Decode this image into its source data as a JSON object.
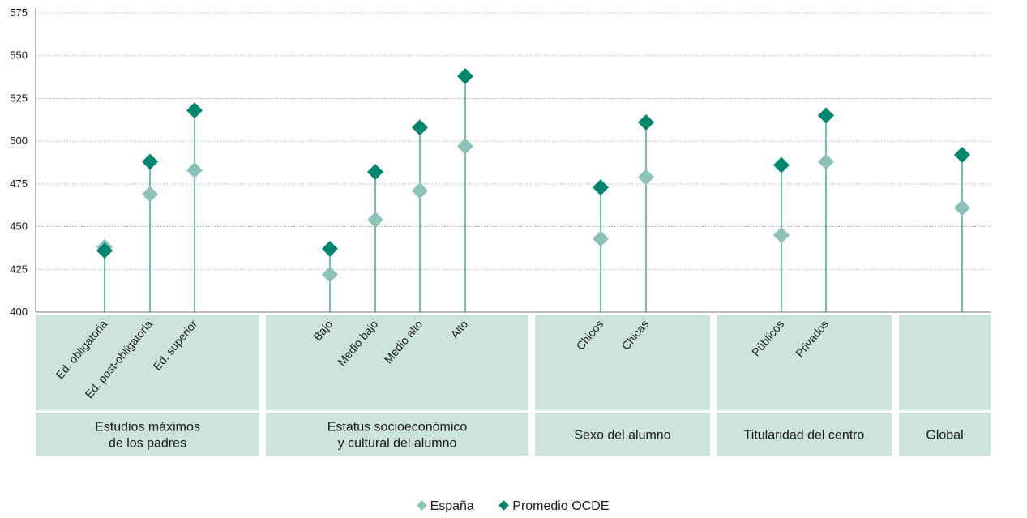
{
  "chart_data": {
    "type": "dot-range",
    "ylim": [
      400,
      575
    ],
    "yticks": [
      400,
      425,
      450,
      475,
      500,
      525,
      550,
      575
    ],
    "grid": true,
    "legend_position": "bottom-center",
    "colors": {
      "espana": "#8cc2b7",
      "ocde": "#00866e",
      "panel": "#cce3de",
      "grid": "#9a9a9a"
    },
    "series": [
      {
        "name": "España",
        "key": "espana"
      },
      {
        "name": "Promedio OCDE",
        "key": "ocde"
      }
    ],
    "groups": [
      {
        "label_lines": [
          "Estudios máximos",
          "de los padres"
        ],
        "categories": [
          {
            "label": "Ed. obligatoria",
            "espana": 438,
            "ocde": 436
          },
          {
            "label": "Ed. post-obligatoria",
            "espana": 469,
            "ocde": 488
          },
          {
            "label": "Ed. superior",
            "espana": 483,
            "ocde": 518
          }
        ]
      },
      {
        "label_lines": [
          "Estatus socioeconómico",
          "y cultural del alumno"
        ],
        "categories": [
          {
            "label": "Bajo",
            "espana": 422,
            "ocde": 437
          },
          {
            "label": "Medio bajo",
            "espana": 454,
            "ocde": 482
          },
          {
            "label": "Medio alto",
            "espana": 471,
            "ocde": 508
          },
          {
            "label": "Alto",
            "espana": 497,
            "ocde": 538
          }
        ]
      },
      {
        "label_lines": [
          "Sexo del alumno"
        ],
        "categories": [
          {
            "label": "Chicos",
            "espana": 443,
            "ocde": 473
          },
          {
            "label": "Chicas",
            "espana": 479,
            "ocde": 511
          }
        ]
      },
      {
        "label_lines": [
          "Titularidad del centro"
        ],
        "categories": [
          {
            "label": "Públicos",
            "espana": 445,
            "ocde": 486
          },
          {
            "label": "Privados",
            "espana": 488,
            "ocde": 515
          }
        ]
      },
      {
        "label_lines": [
          "Global"
        ],
        "categories": [
          {
            "label": "",
            "espana": 461,
            "ocde": 492
          }
        ]
      }
    ]
  }
}
